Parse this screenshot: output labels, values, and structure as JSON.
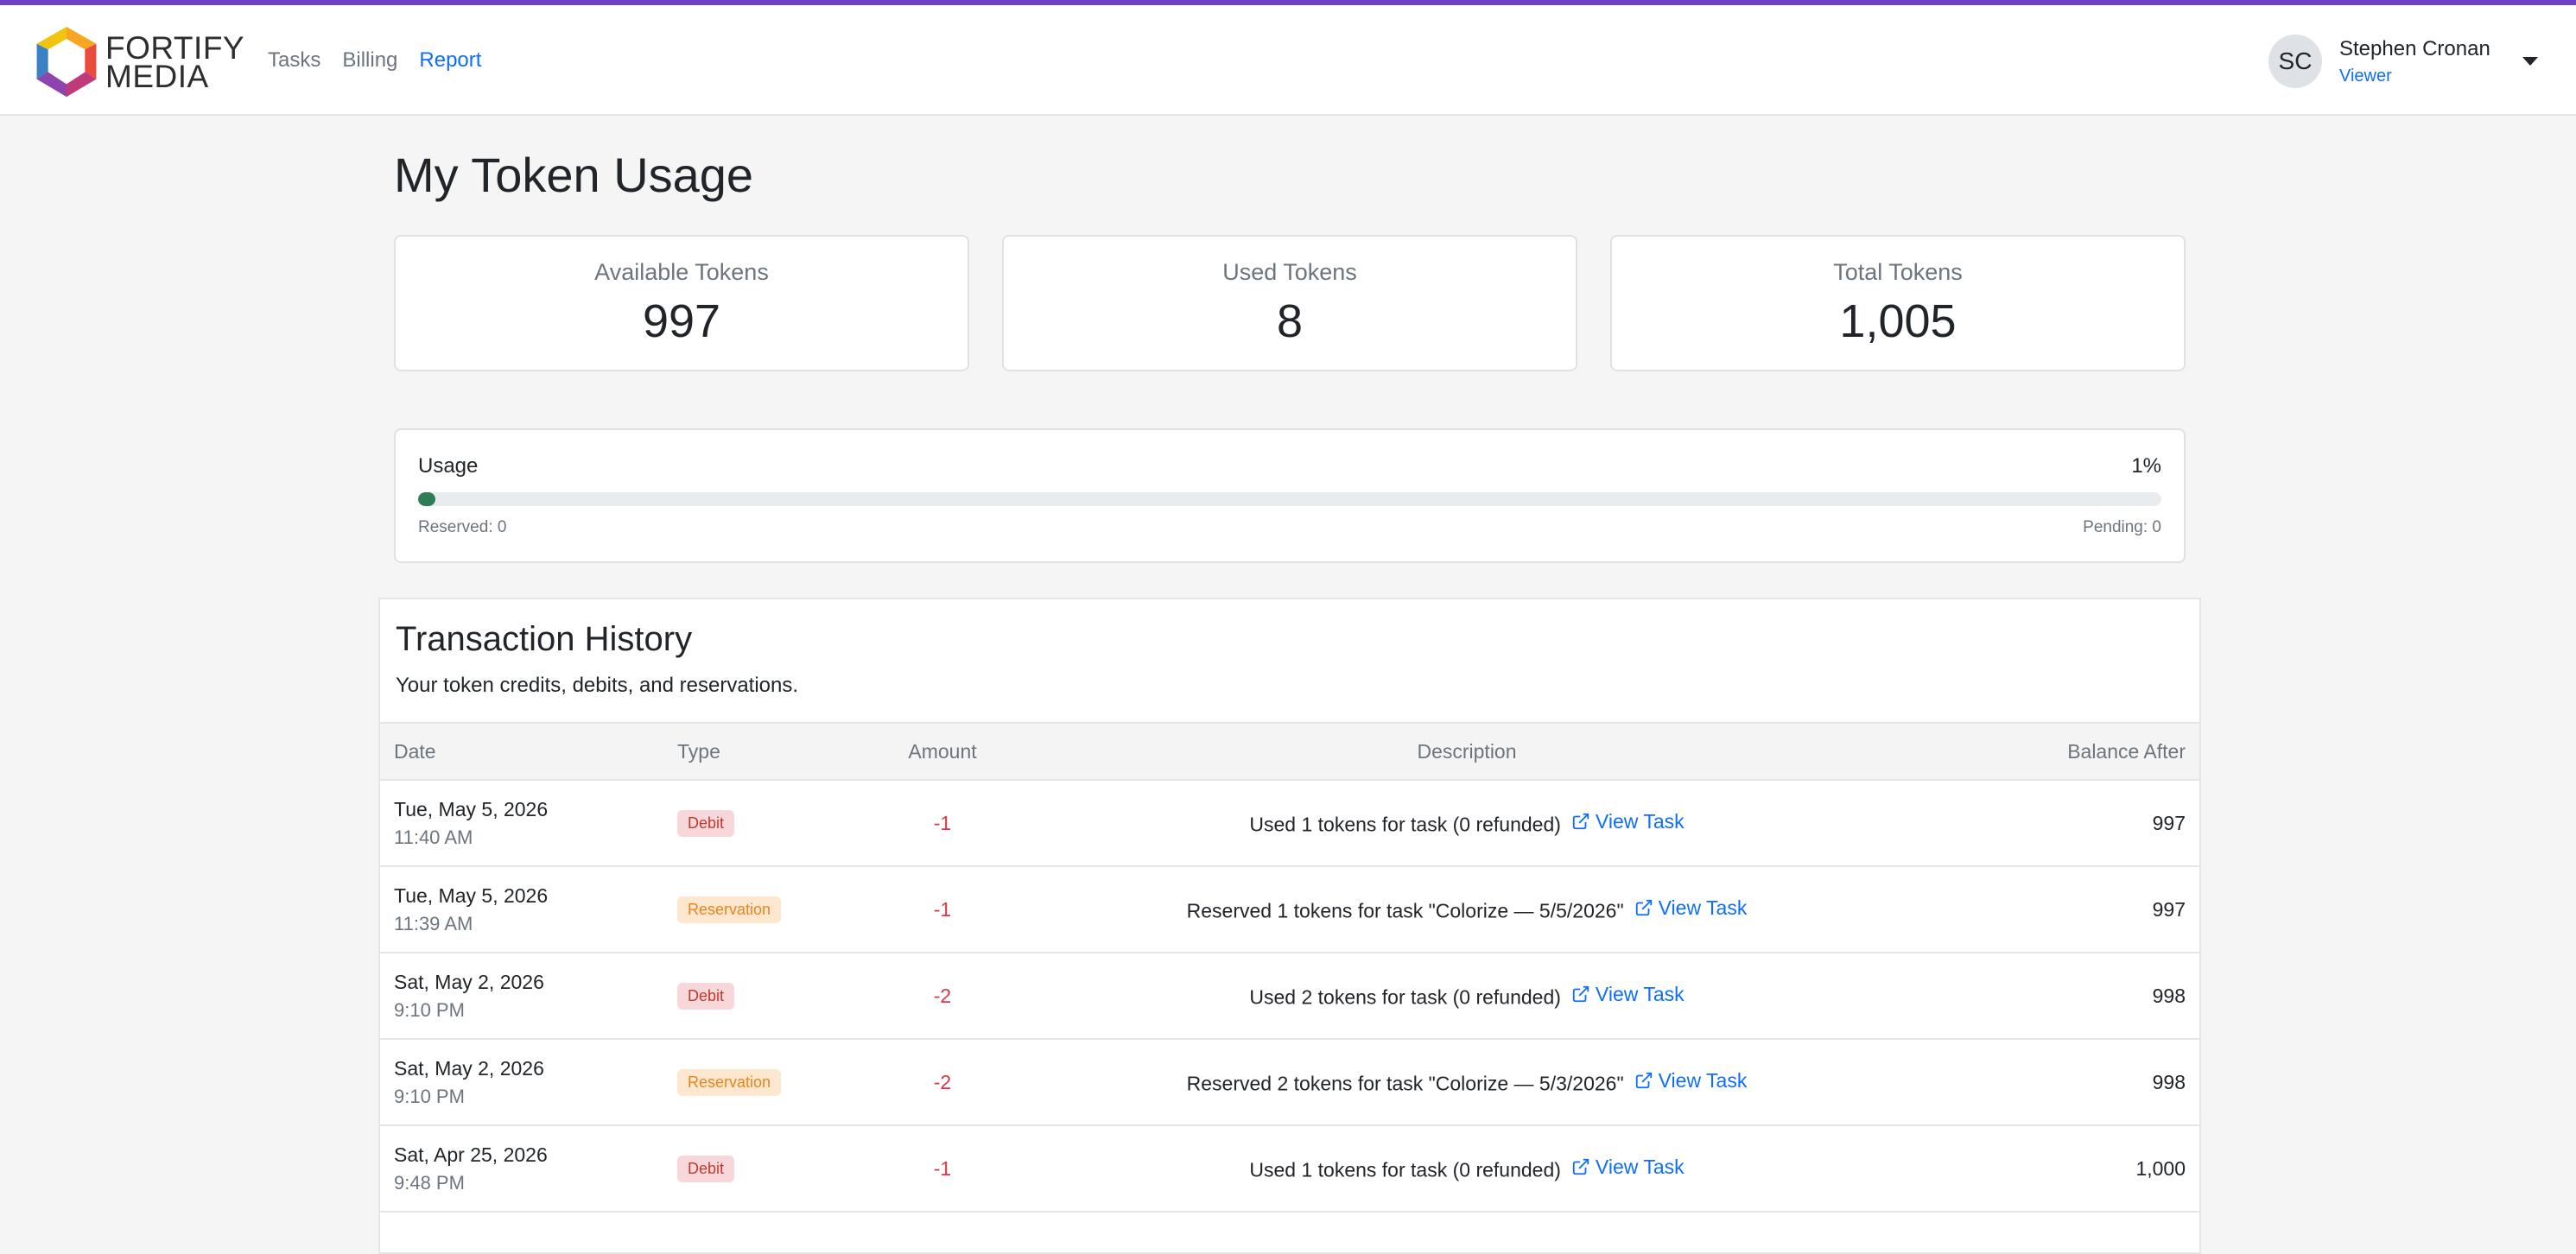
{
  "brand": {
    "line1": "FORTIFY",
    "line2": "MEDIA"
  },
  "nav": [
    {
      "label": "Tasks"
    },
    {
      "label": "Billing"
    },
    {
      "label": "Report"
    }
  ],
  "user": {
    "initials": "SC",
    "name": "Stephen Cronan",
    "role": "Viewer"
  },
  "page": {
    "title": "My Token Usage"
  },
  "stats": [
    {
      "label": "Available Tokens",
      "value": "997"
    },
    {
      "label": "Used Tokens",
      "value": "8"
    },
    {
      "label": "Total Tokens",
      "value": "1,005"
    }
  ],
  "usage": {
    "label": "Usage",
    "percent_label": "1%",
    "percent": 1,
    "reserved": "Reserved: 0",
    "pending": "Pending: 0"
  },
  "transactions": {
    "title": "Transaction History",
    "subtitle": "Your token credits, debits, and reservations.",
    "columns": [
      "Date",
      "Type",
      "Amount",
      "Description",
      "Balance After"
    ],
    "rows": [
      {
        "date": "Tue, May 5, 2026",
        "time": "11:40 AM",
        "type": "Debit",
        "amount": "-1",
        "description": "Used 1 tokens for task (0 refunded)",
        "link": "View Task",
        "balance": "997"
      },
      {
        "date": "Tue, May 5, 2026",
        "time": "11:39 AM",
        "type": "Reservation",
        "amount": "-1",
        "description": "Reserved 1 tokens for task \"Colorize — 5/5/2026\"",
        "link": "View Task",
        "balance": "997"
      },
      {
        "date": "Sat, May 2, 2026",
        "time": "9:10 PM",
        "type": "Debit",
        "amount": "-2",
        "description": "Used 2 tokens for task (0 refunded)",
        "link": "View Task",
        "balance": "998"
      },
      {
        "date": "Sat, May 2, 2026",
        "time": "9:10 PM",
        "type": "Reservation",
        "amount": "-2",
        "description": "Reserved 2 tokens for task \"Colorize — 5/3/2026\"",
        "link": "View Task",
        "balance": "998"
      },
      {
        "date": "Sat, Apr 25, 2026",
        "time": "9:48 PM",
        "type": "Debit",
        "amount": "-1",
        "description": "Used 1 tokens for task (0 refunded)",
        "link": "View Task",
        "balance": "1,000"
      }
    ]
  },
  "colors": {
    "accent": "#6f42c1",
    "link": "#0d6efd",
    "progress": "#2e7d55",
    "debit": "#c0392b",
    "reservation": "#e8831c"
  }
}
